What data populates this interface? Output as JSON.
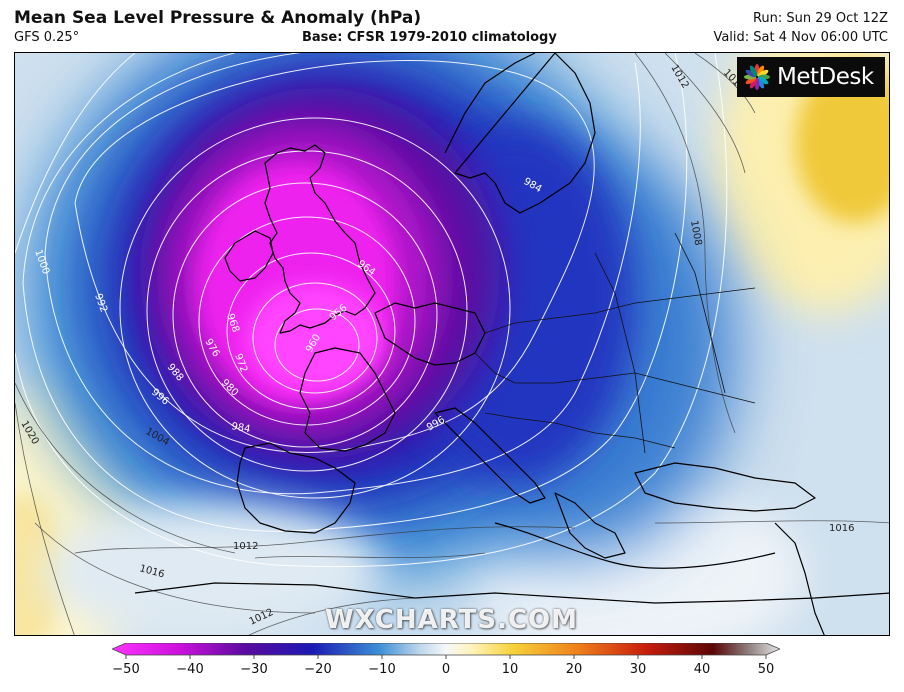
{
  "header": {
    "title": "Mean Sea Level Pressure & Anomaly (hPa)",
    "model": "GFS 0.25°",
    "base": "Base: CFSR 1979-2010 climatology",
    "run": "Run: Sun 29 Oct 12Z",
    "valid": "Valid: Sat 4 Nov 06:00 UTC"
  },
  "brand": {
    "logo_text": "MetDesk",
    "watermark": "WXCHARTS.COM"
  },
  "colorbar": {
    "ticks": [
      "−50",
      "−40",
      "−30",
      "−20",
      "−10",
      "0",
      "10",
      "20",
      "30",
      "40",
      "50"
    ],
    "range": [
      -50,
      50
    ],
    "stops": [
      {
        "v": -50,
        "c": "#ff33ff"
      },
      {
        "v": -40,
        "c": "#cc11dd"
      },
      {
        "v": -30,
        "c": "#5a0aa0"
      },
      {
        "v": -20,
        "c": "#1a1ab4"
      },
      {
        "v": -10,
        "c": "#3d8fd6"
      },
      {
        "v": -4,
        "c": "#bcd6ec"
      },
      {
        "v": 0,
        "c": "#f6f8fa"
      },
      {
        "v": 4,
        "c": "#fff3b8"
      },
      {
        "v": 10,
        "c": "#f6d23a"
      },
      {
        "v": 20,
        "c": "#ee7d1a"
      },
      {
        "v": 30,
        "c": "#c81c0c"
      },
      {
        "v": 40,
        "c": "#5a0606"
      },
      {
        "v": 45,
        "c": "#8a7878"
      },
      {
        "v": 50,
        "c": "#e6e6e6"
      }
    ]
  },
  "isobars": {
    "labels": [
      "1016",
      "1012",
      "984",
      "1008",
      "1000",
      "992",
      "964",
      "968",
      "956",
      "960",
      "976",
      "972",
      "988",
      "980",
      "996",
      "984",
      "996",
      "1020",
      "1004",
      "1012",
      "1016",
      "1016",
      "1012"
    ]
  }
}
